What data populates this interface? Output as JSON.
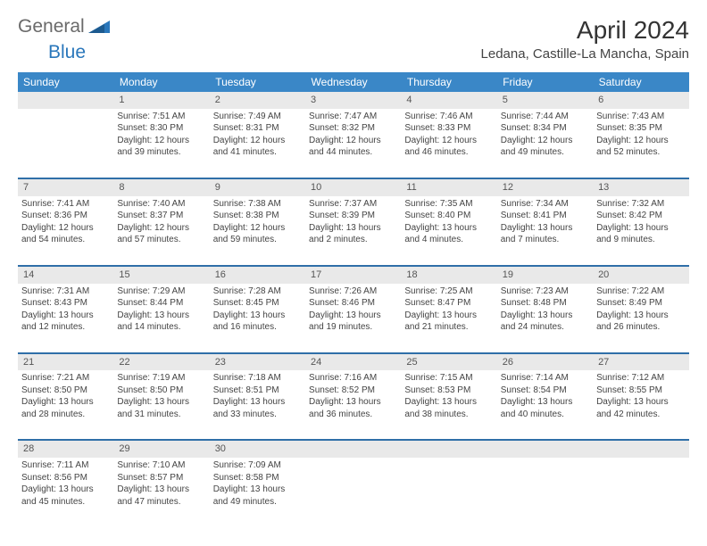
{
  "logo": {
    "general": "General",
    "blue": "Blue"
  },
  "title": "April 2024",
  "subtitle": "Ledana, Castille-La Mancha, Spain",
  "colors": {
    "header_bg": "#3a87c7",
    "header_text": "#ffffff",
    "daynum_bg": "#e9e9e9",
    "border": "#2f6fa8",
    "text": "#444444",
    "logo_gray": "#6a6a6a",
    "logo_blue": "#2a77bb"
  },
  "typography": {
    "title_fontsize": 28,
    "subtitle_fontsize": 15,
    "dayheader_fontsize": 12,
    "cell_fontsize": 10
  },
  "day_headers": [
    "Sunday",
    "Monday",
    "Tuesday",
    "Wednesday",
    "Thursday",
    "Friday",
    "Saturday"
  ],
  "weeks": [
    {
      "nums": [
        "",
        "1",
        "2",
        "3",
        "4",
        "5",
        "6"
      ],
      "cells": [
        null,
        {
          "sunrise": "Sunrise: 7:51 AM",
          "sunset": "Sunset: 8:30 PM",
          "daylight": "Daylight: 12 hours and 39 minutes."
        },
        {
          "sunrise": "Sunrise: 7:49 AM",
          "sunset": "Sunset: 8:31 PM",
          "daylight": "Daylight: 12 hours and 41 minutes."
        },
        {
          "sunrise": "Sunrise: 7:47 AM",
          "sunset": "Sunset: 8:32 PM",
          "daylight": "Daylight: 12 hours and 44 minutes."
        },
        {
          "sunrise": "Sunrise: 7:46 AM",
          "sunset": "Sunset: 8:33 PM",
          "daylight": "Daylight: 12 hours and 46 minutes."
        },
        {
          "sunrise": "Sunrise: 7:44 AM",
          "sunset": "Sunset: 8:34 PM",
          "daylight": "Daylight: 12 hours and 49 minutes."
        },
        {
          "sunrise": "Sunrise: 7:43 AM",
          "sunset": "Sunset: 8:35 PM",
          "daylight": "Daylight: 12 hours and 52 minutes."
        }
      ]
    },
    {
      "nums": [
        "7",
        "8",
        "9",
        "10",
        "11",
        "12",
        "13"
      ],
      "cells": [
        {
          "sunrise": "Sunrise: 7:41 AM",
          "sunset": "Sunset: 8:36 PM",
          "daylight": "Daylight: 12 hours and 54 minutes."
        },
        {
          "sunrise": "Sunrise: 7:40 AM",
          "sunset": "Sunset: 8:37 PM",
          "daylight": "Daylight: 12 hours and 57 minutes."
        },
        {
          "sunrise": "Sunrise: 7:38 AM",
          "sunset": "Sunset: 8:38 PM",
          "daylight": "Daylight: 12 hours and 59 minutes."
        },
        {
          "sunrise": "Sunrise: 7:37 AM",
          "sunset": "Sunset: 8:39 PM",
          "daylight": "Daylight: 13 hours and 2 minutes."
        },
        {
          "sunrise": "Sunrise: 7:35 AM",
          "sunset": "Sunset: 8:40 PM",
          "daylight": "Daylight: 13 hours and 4 minutes."
        },
        {
          "sunrise": "Sunrise: 7:34 AM",
          "sunset": "Sunset: 8:41 PM",
          "daylight": "Daylight: 13 hours and 7 minutes."
        },
        {
          "sunrise": "Sunrise: 7:32 AM",
          "sunset": "Sunset: 8:42 PM",
          "daylight": "Daylight: 13 hours and 9 minutes."
        }
      ]
    },
    {
      "nums": [
        "14",
        "15",
        "16",
        "17",
        "18",
        "19",
        "20"
      ],
      "cells": [
        {
          "sunrise": "Sunrise: 7:31 AM",
          "sunset": "Sunset: 8:43 PM",
          "daylight": "Daylight: 13 hours and 12 minutes."
        },
        {
          "sunrise": "Sunrise: 7:29 AM",
          "sunset": "Sunset: 8:44 PM",
          "daylight": "Daylight: 13 hours and 14 minutes."
        },
        {
          "sunrise": "Sunrise: 7:28 AM",
          "sunset": "Sunset: 8:45 PM",
          "daylight": "Daylight: 13 hours and 16 minutes."
        },
        {
          "sunrise": "Sunrise: 7:26 AM",
          "sunset": "Sunset: 8:46 PM",
          "daylight": "Daylight: 13 hours and 19 minutes."
        },
        {
          "sunrise": "Sunrise: 7:25 AM",
          "sunset": "Sunset: 8:47 PM",
          "daylight": "Daylight: 13 hours and 21 minutes."
        },
        {
          "sunrise": "Sunrise: 7:23 AM",
          "sunset": "Sunset: 8:48 PM",
          "daylight": "Daylight: 13 hours and 24 minutes."
        },
        {
          "sunrise": "Sunrise: 7:22 AM",
          "sunset": "Sunset: 8:49 PM",
          "daylight": "Daylight: 13 hours and 26 minutes."
        }
      ]
    },
    {
      "nums": [
        "21",
        "22",
        "23",
        "24",
        "25",
        "26",
        "27"
      ],
      "cells": [
        {
          "sunrise": "Sunrise: 7:21 AM",
          "sunset": "Sunset: 8:50 PM",
          "daylight": "Daylight: 13 hours and 28 minutes."
        },
        {
          "sunrise": "Sunrise: 7:19 AM",
          "sunset": "Sunset: 8:50 PM",
          "daylight": "Daylight: 13 hours and 31 minutes."
        },
        {
          "sunrise": "Sunrise: 7:18 AM",
          "sunset": "Sunset: 8:51 PM",
          "daylight": "Daylight: 13 hours and 33 minutes."
        },
        {
          "sunrise": "Sunrise: 7:16 AM",
          "sunset": "Sunset: 8:52 PM",
          "daylight": "Daylight: 13 hours and 36 minutes."
        },
        {
          "sunrise": "Sunrise: 7:15 AM",
          "sunset": "Sunset: 8:53 PM",
          "daylight": "Daylight: 13 hours and 38 minutes."
        },
        {
          "sunrise": "Sunrise: 7:14 AM",
          "sunset": "Sunset: 8:54 PM",
          "daylight": "Daylight: 13 hours and 40 minutes."
        },
        {
          "sunrise": "Sunrise: 7:12 AM",
          "sunset": "Sunset: 8:55 PM",
          "daylight": "Daylight: 13 hours and 42 minutes."
        }
      ]
    },
    {
      "nums": [
        "28",
        "29",
        "30",
        "",
        "",
        "",
        ""
      ],
      "cells": [
        {
          "sunrise": "Sunrise: 7:11 AM",
          "sunset": "Sunset: 8:56 PM",
          "daylight": "Daylight: 13 hours and 45 minutes."
        },
        {
          "sunrise": "Sunrise: 7:10 AM",
          "sunset": "Sunset: 8:57 PM",
          "daylight": "Daylight: 13 hours and 47 minutes."
        },
        {
          "sunrise": "Sunrise: 7:09 AM",
          "sunset": "Sunset: 8:58 PM",
          "daylight": "Daylight: 13 hours and 49 minutes."
        },
        null,
        null,
        null,
        null
      ]
    }
  ]
}
